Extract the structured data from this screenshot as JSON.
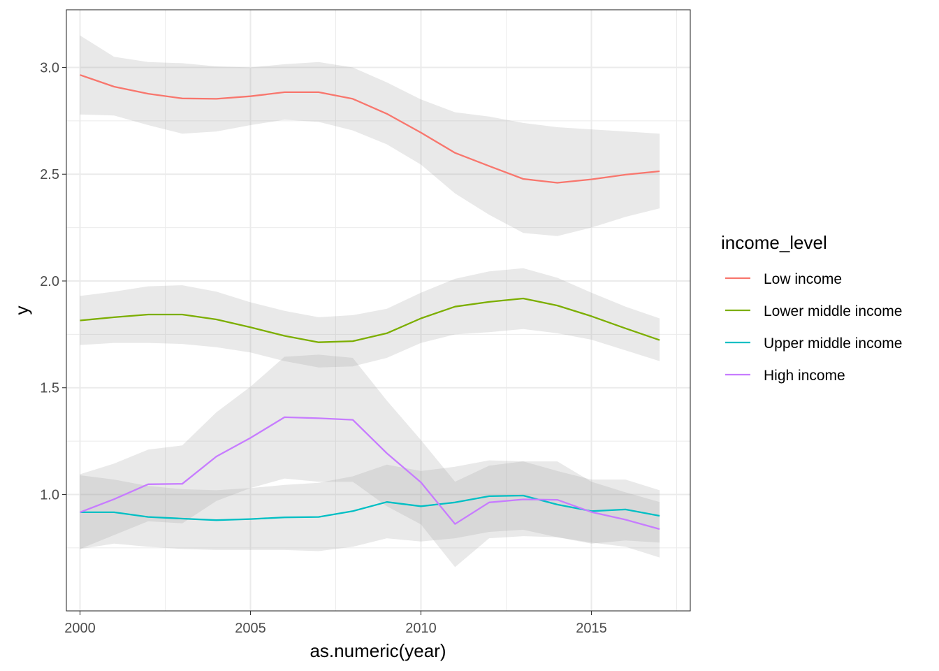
{
  "chart_data": {
    "type": "line",
    "xlabel": "as.numeric(year)",
    "ylabel": "y",
    "xlim": [
      1999.6,
      2017.9
    ],
    "ylim": [
      0.455,
      3.27
    ],
    "x_ticks": [
      2000,
      2005,
      2010,
      2015
    ],
    "x_tick_labels": [
      "2000",
      "2005",
      "2010",
      "2015"
    ],
    "x_minor_ticks": [
      2002.5,
      2007.5,
      2012.5,
      2017.5
    ],
    "y_ticks": [
      1.0,
      1.5,
      2.0,
      2.5,
      3.0
    ],
    "y_tick_labels": [
      "1.0",
      "1.5",
      "2.0",
      "2.5",
      "3.0"
    ],
    "y_minor_ticks": [
      0.75,
      1.25,
      1.75,
      2.25,
      2.75
    ],
    "grid": true,
    "legend": {
      "title": "income_level",
      "position": "right"
    },
    "x": [
      2000,
      2001,
      2002,
      2003,
      2004,
      2005,
      2006,
      2007,
      2008,
      2009,
      2010,
      2011,
      2012,
      2013,
      2014,
      2015,
      2016,
      2017
    ],
    "series": [
      {
        "name": "Low income",
        "color": "#F8766D",
        "values": [
          2.965,
          2.91,
          2.877,
          2.855,
          2.853,
          2.865,
          2.884,
          2.884,
          2.853,
          2.783,
          2.695,
          2.6,
          2.538,
          2.478,
          2.46,
          2.476,
          2.498,
          2.514
        ],
        "ci_lower": [
          2.78,
          2.775,
          2.73,
          2.69,
          2.7,
          2.73,
          2.755,
          2.745,
          2.705,
          2.64,
          2.545,
          2.41,
          2.31,
          2.225,
          2.21,
          2.25,
          2.3,
          2.34
        ],
        "ci_upper": [
          3.15,
          3.05,
          3.025,
          3.02,
          3.005,
          3.0,
          3.015,
          3.025,
          3.0,
          2.93,
          2.85,
          2.79,
          2.77,
          2.74,
          2.72,
          2.71,
          2.7,
          2.69
        ]
      },
      {
        "name": "Lower middle income",
        "color": "#7CAE00",
        "values": [
          1.815,
          1.83,
          1.843,
          1.843,
          1.82,
          1.783,
          1.743,
          1.713,
          1.718,
          1.755,
          1.825,
          1.88,
          1.902,
          1.918,
          1.885,
          1.835,
          1.778,
          1.723
        ],
        "ci_lower": [
          1.7,
          1.71,
          1.71,
          1.705,
          1.69,
          1.665,
          1.625,
          1.595,
          1.6,
          1.64,
          1.71,
          1.75,
          1.76,
          1.775,
          1.755,
          1.725,
          1.675,
          1.625
        ],
        "ci_upper": [
          1.93,
          1.95,
          1.975,
          1.98,
          1.95,
          1.9,
          1.86,
          1.83,
          1.84,
          1.87,
          1.945,
          2.01,
          2.045,
          2.06,
          2.015,
          1.945,
          1.88,
          1.825
        ]
      },
      {
        "name": "Upper middle income",
        "color": "#00BFC4",
        "values": [
          0.917,
          0.917,
          0.895,
          0.887,
          0.88,
          0.885,
          0.893,
          0.895,
          0.922,
          0.965,
          0.945,
          0.963,
          0.992,
          0.995,
          0.953,
          0.922,
          0.93,
          0.9
        ],
        "ci_lower": [
          0.745,
          0.77,
          0.755,
          0.745,
          0.74,
          0.74,
          0.74,
          0.735,
          0.755,
          0.795,
          0.78,
          0.795,
          0.825,
          0.835,
          0.8,
          0.77,
          0.785,
          0.775
        ],
        "ci_upper": [
          1.09,
          1.07,
          1.04,
          1.025,
          1.02,
          1.03,
          1.045,
          1.055,
          1.085,
          1.14,
          1.11,
          1.13,
          1.16,
          1.155,
          1.11,
          1.07,
          1.07,
          1.02
        ]
      },
      {
        "name": "High income",
        "color": "#C77CFF",
        "values": [
          0.917,
          0.978,
          1.048,
          1.05,
          1.178,
          1.265,
          1.362,
          1.357,
          1.35,
          1.193,
          1.057,
          0.862,
          0.963,
          0.977,
          0.975,
          0.918,
          0.882,
          0.838
        ],
        "ci_lower": [
          0.745,
          0.81,
          0.875,
          0.865,
          0.97,
          1.03,
          1.075,
          1.06,
          1.06,
          0.945,
          0.86,
          0.66,
          0.795,
          0.805,
          0.8,
          0.775,
          0.755,
          0.705
        ],
        "ci_upper": [
          1.095,
          1.145,
          1.21,
          1.23,
          1.385,
          1.505,
          1.645,
          1.655,
          1.64,
          1.44,
          1.255,
          1.06,
          1.135,
          1.155,
          1.155,
          1.06,
          1.01,
          0.965
        ]
      }
    ]
  }
}
